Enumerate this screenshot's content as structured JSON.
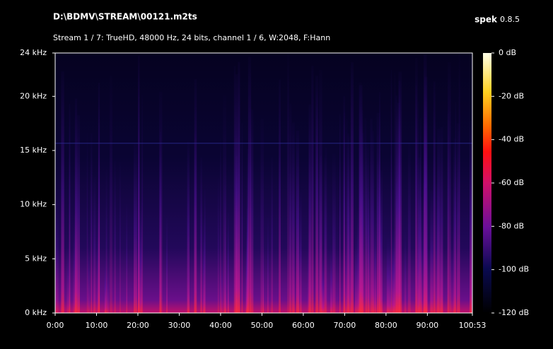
{
  "app": {
    "name": "spek",
    "version": "0.8.5"
  },
  "chart_data": {
    "type": "spectrogram",
    "title": "D:\\BDMV\\STREAM\\00121.m2ts",
    "subtitle": "Stream 1 / 7: TrueHD, 48000 Hz, 24 bits, channel 1 / 6, W:2048, F:Hann",
    "xlim": [
      0,
      6053
    ],
    "xticks": [
      {
        "value": 0,
        "label": "0:00"
      },
      {
        "value": 600,
        "label": "10:00"
      },
      {
        "value": 1200,
        "label": "20:00"
      },
      {
        "value": 1800,
        "label": "30:00"
      },
      {
        "value": 2400,
        "label": "40:00"
      },
      {
        "value": 3000,
        "label": "50:00"
      },
      {
        "value": 3600,
        "label": "60:00"
      },
      {
        "value": 4200,
        "label": "70:00"
      },
      {
        "value": 4800,
        "label": "80:00"
      },
      {
        "value": 5400,
        "label": "90:00"
      },
      {
        "value": 6053,
        "label": "100:53"
      }
    ],
    "ylim": [
      0,
      24
    ],
    "yticks": [
      {
        "value": 0,
        "label": "0 kHz"
      },
      {
        "value": 5,
        "label": "5 kHz"
      },
      {
        "value": 10,
        "label": "10 kHz"
      },
      {
        "value": 15,
        "label": "15 kHz"
      },
      {
        "value": 20,
        "label": "20 kHz"
      },
      {
        "value": 24,
        "label": "24 kHz"
      }
    ],
    "colorbar": {
      "lim": [
        -120,
        0
      ],
      "ticks": [
        {
          "value": 0,
          "label": "0 dB"
        },
        {
          "value": -20,
          "label": "-20 dB"
        },
        {
          "value": -40,
          "label": "-40 dB"
        },
        {
          "value": -60,
          "label": "-60 dB"
        },
        {
          "value": -80,
          "label": "-80 dB"
        },
        {
          "value": -100,
          "label": "-100 dB"
        },
        {
          "value": -120,
          "label": "-120 dB"
        }
      ]
    }
  }
}
